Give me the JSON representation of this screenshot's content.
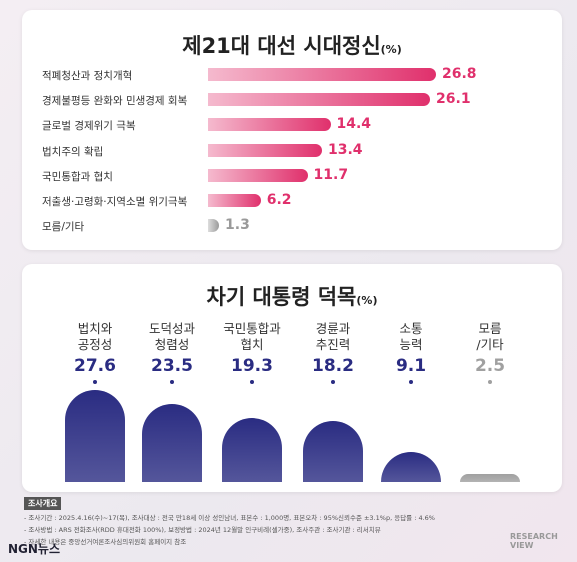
{
  "chart_data": [
    {
      "type": "hbar",
      "title": "제21대 대선 시대정신",
      "unit": "(%)",
      "categories": [
        "적폐청산과 정치개혁",
        "경제불평등 완화와 민생경제 회복",
        "글로벌 경제위기 극복",
        "법치주의 확립",
        "국민통합과 협치",
        "저출생·고령화·지역소멸 위기극복",
        "모름/기타"
      ],
      "values": [
        26.8,
        26.1,
        14.4,
        13.4,
        11.7,
        6.2,
        1.3
      ],
      "colors": [
        "#e0306c",
        "#e0306c",
        "#e0306c",
        "#e0306c",
        "#e0306c",
        "#e0306c",
        "#9a9a9a"
      ]
    },
    {
      "type": "column",
      "title": "차기 대통령 덕목",
      "unit": "(%)",
      "categories": [
        "법치와\n공정성",
        "도덕성과\n청렴성",
        "국민통합과\n협치",
        "경륜과\n추진력",
        "소통\n능력",
        "모름\n/기타"
      ],
      "values": [
        27.6,
        23.5,
        19.3,
        18.2,
        9.1,
        2.5
      ],
      "colors": [
        "#2a2c82",
        "#2a2c82",
        "#2a2c82",
        "#2a2c82",
        "#2a2c82",
        "#a0a0a0"
      ]
    }
  ],
  "survey_note": {
    "heading": "조사개요",
    "lines": [
      "- 조사기간 : 2025.4.16(수)~17(목), 조사대상 : 전국 만18세 이상 성인남녀, 표본수 : 1,000명, 표본오차 : 95%신뢰수준 ±3.1%p, 응답률 : 4.6%",
      "- 조사방법 : ARS 전화조사(RDD 휴대전화 100%), 보정방법 : 2024년 12월말 인구비례(셀가중), 조사주관 : 조사기관 : 리서치뷰",
      "- 자세한 내용은 중앙선거여론조사심의위원회 홈페이지 참조"
    ]
  },
  "logos": {
    "left": "NGN뉴스",
    "right": "RESEARCH VIEW"
  }
}
